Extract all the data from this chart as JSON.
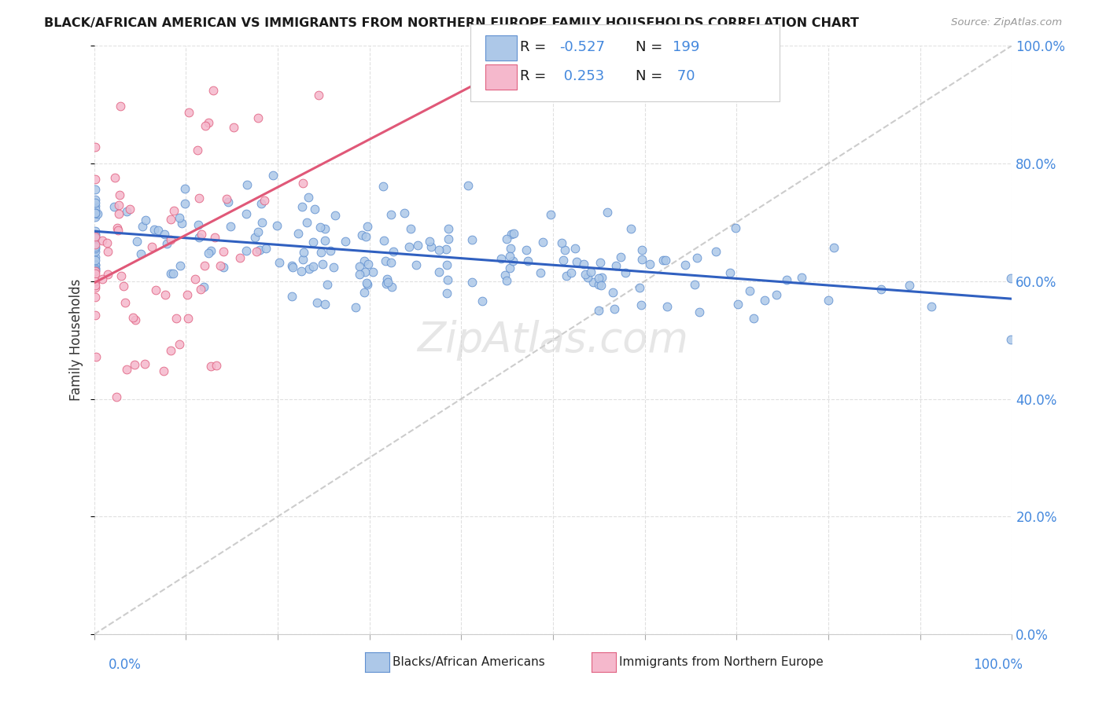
{
  "title": "BLACK/AFRICAN AMERICAN VS IMMIGRANTS FROM NORTHERN EUROPE FAMILY HOUSEHOLDS CORRELATION CHART",
  "source": "Source: ZipAtlas.com",
  "ylabel": "Family Households",
  "legend_label_blue": "Blacks/African Americans",
  "legend_label_pink": "Immigrants from Northern Europe",
  "blue_color": "#adc8e8",
  "pink_color": "#f5b8cc",
  "blue_edge_color": "#6090d0",
  "pink_edge_color": "#e06080",
  "blue_line_color": "#3060c0",
  "pink_line_color": "#e05878",
  "gray_line_color": "#c0c0c0",
  "background_color": "#ffffff",
  "grid_color": "#e0e0e0",
  "title_color": "#1a1a1a",
  "source_color": "#999999",
  "right_axis_color": "#4488dd",
  "blue_R": -0.527,
  "blue_N": 199,
  "pink_R": 0.253,
  "pink_N": 70,
  "seed": 42,
  "watermark": "ZipAtlas.com"
}
